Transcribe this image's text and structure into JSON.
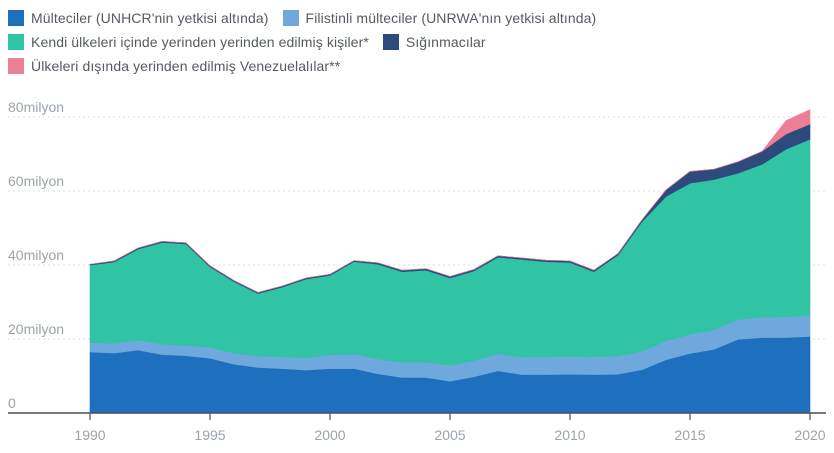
{
  "legend": {
    "rows": [
      [
        {
          "key": "unhcr",
          "label": "Mülteciler (UNHCR'nin yetkisi altında)"
        },
        {
          "key": "unrwa",
          "label": "Filistinli mülteciler (UNRWA'nın yetkisi altında)"
        }
      ],
      [
        {
          "key": "idp",
          "label": "Kendi ülkeleri içinde yerinden yerinden edilmiş kişiler*"
        },
        {
          "key": "asylum",
          "label": "Sığınmacılar"
        }
      ],
      [
        {
          "key": "venezuela",
          "label": "Ülkeleri dışında yerinden edilmiş Venezuelalılar**"
        }
      ]
    ]
  },
  "chart_data": {
    "type": "area",
    "stacked": true,
    "x": [
      1990,
      1991,
      1992,
      1993,
      1994,
      1995,
      1996,
      1997,
      1998,
      1999,
      2000,
      2001,
      2002,
      2003,
      2004,
      2005,
      2006,
      2007,
      2008,
      2009,
      2010,
      2011,
      2012,
      2013,
      2014,
      2015,
      2016,
      2017,
      2018,
      2019,
      2020
    ],
    "series": [
      {
        "key": "unhcr",
        "name": "Mülteciler (UNHCR'nin yetkisi altında)",
        "color": "#1f6fbf",
        "values": [
          16.5,
          16.2,
          17.0,
          15.8,
          15.5,
          14.8,
          13.2,
          12.3,
          12.0,
          11.6,
          12.0,
          12.0,
          10.6,
          9.6,
          9.6,
          8.6,
          9.8,
          11.4,
          10.4,
          10.4,
          10.5,
          10.4,
          10.5,
          11.7,
          14.4,
          16.1,
          17.2,
          19.9,
          20.4,
          20.4,
          20.7
        ]
      },
      {
        "key": "unrwa",
        "name": "Filistinli mülteciler (UNRWA'nın yetkisi altında)",
        "color": "#6fa8dc",
        "values": [
          2.5,
          2.6,
          2.7,
          2.8,
          2.8,
          2.9,
          3.0,
          3.1,
          3.2,
          3.3,
          3.7,
          3.9,
          4.0,
          4.1,
          4.2,
          4.3,
          4.4,
          4.6,
          4.7,
          4.8,
          4.8,
          4.8,
          4.9,
          5.0,
          5.1,
          5.2,
          5.3,
          5.4,
          5.5,
          5.6,
          5.7
        ]
      },
      {
        "key": "idp",
        "name": "Kendi ülkeleri içinde yerinden yerinden edilmiş kişiler*",
        "color": "#30c3a4",
        "values": [
          21.0,
          22.0,
          24.6,
          27.5,
          27.4,
          21.8,
          19.3,
          16.9,
          18.8,
          21.3,
          21.5,
          25.0,
          25.6,
          24.5,
          24.8,
          23.6,
          24.2,
          26.1,
          26.4,
          25.7,
          25.4,
          23.0,
          27.3,
          35.0,
          39.0,
          40.8,
          40.6,
          39.5,
          41.3,
          45.3,
          47.6
        ]
      },
      {
        "key": "asylum",
        "name": "Sığınmacılar",
        "color": "#2e4a7c",
        "values": [
          0.2,
          0.3,
          0.3,
          0.3,
          0.3,
          0.3,
          0.3,
          0.3,
          0.3,
          0.3,
          0.3,
          0.3,
          0.4,
          0.4,
          0.4,
          0.4,
          0.4,
          0.4,
          0.4,
          0.4,
          0.4,
          0.4,
          0.4,
          0.5,
          1.8,
          3.2,
          2.8,
          3.1,
          3.5,
          4.1,
          4.1
        ]
      },
      {
        "key": "venezuela",
        "name": "Ülkeleri dışında yerinden edilmiş Venezuelalılar**",
        "color": "#ec7f96",
        "values": [
          0,
          0,
          0,
          0,
          0,
          0,
          0,
          0,
          0,
          0,
          0,
          0,
          0,
          0,
          0,
          0,
          0,
          0,
          0,
          0,
          0,
          0,
          0,
          0,
          0,
          0,
          0,
          0,
          0,
          3.6,
          3.9
        ]
      }
    ],
    "ylim": [
      0,
      80
    ],
    "yticks": [
      {
        "value": 0,
        "label": "0"
      },
      {
        "value": 20,
        "label": "20milyon"
      },
      {
        "value": 40,
        "label": "40milyon"
      },
      {
        "value": 60,
        "label": "60milyon"
      },
      {
        "value": 80,
        "label": "80milyon"
      }
    ],
    "xticks": [
      1990,
      1995,
      2000,
      2005,
      2010,
      2015,
      2020
    ],
    "xlim": [
      1990,
      2020
    ],
    "grid": "horizontal dotted",
    "legend_position": "top-left"
  },
  "colors": {
    "grid": "#d9dde1",
    "axis": "#4a4f55",
    "tick_text": "#9ca3ab"
  }
}
